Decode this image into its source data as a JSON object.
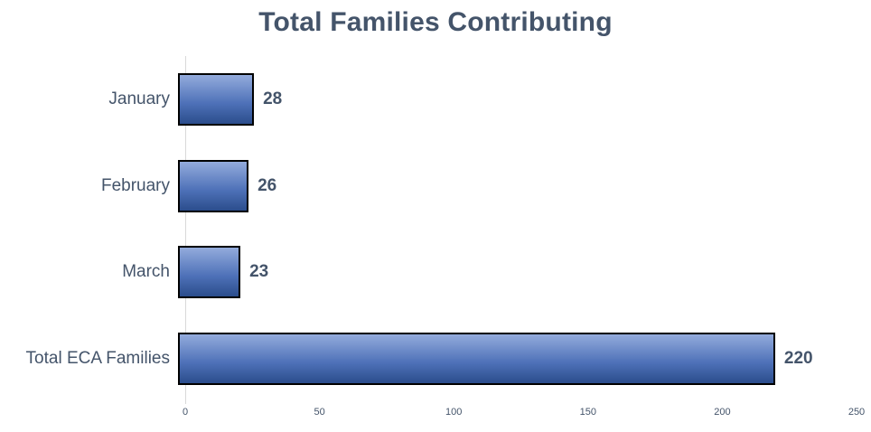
{
  "chart_data": {
    "type": "bar",
    "orientation": "horizontal",
    "title": "Total Families Contributing",
    "categories": [
      "January",
      "February",
      "March",
      "Total ECA Families"
    ],
    "values": [
      28,
      26,
      23,
      220
    ],
    "data_labels": [
      "28",
      "26",
      "23",
      "220"
    ],
    "xlabel": "",
    "ylabel": "",
    "xlim": [
      0,
      250
    ],
    "x_ticks": [
      0,
      50,
      100,
      150,
      200,
      250
    ],
    "grid": false,
    "legend": false,
    "data_labels_position": "outside-end",
    "colors": {
      "background": "#FFFFFF",
      "title_text": "#44546A",
      "category_text": "#44546A",
      "value_text": "#44546A",
      "tick_text": "#44546A",
      "bar_gradient_top": "#93ABDC",
      "bar_gradient_mid": "#4E71B8",
      "bar_gradient_bottom": "#2B4D8C",
      "bar_border": "#000000",
      "axis_line": "#D9D9D9"
    }
  }
}
